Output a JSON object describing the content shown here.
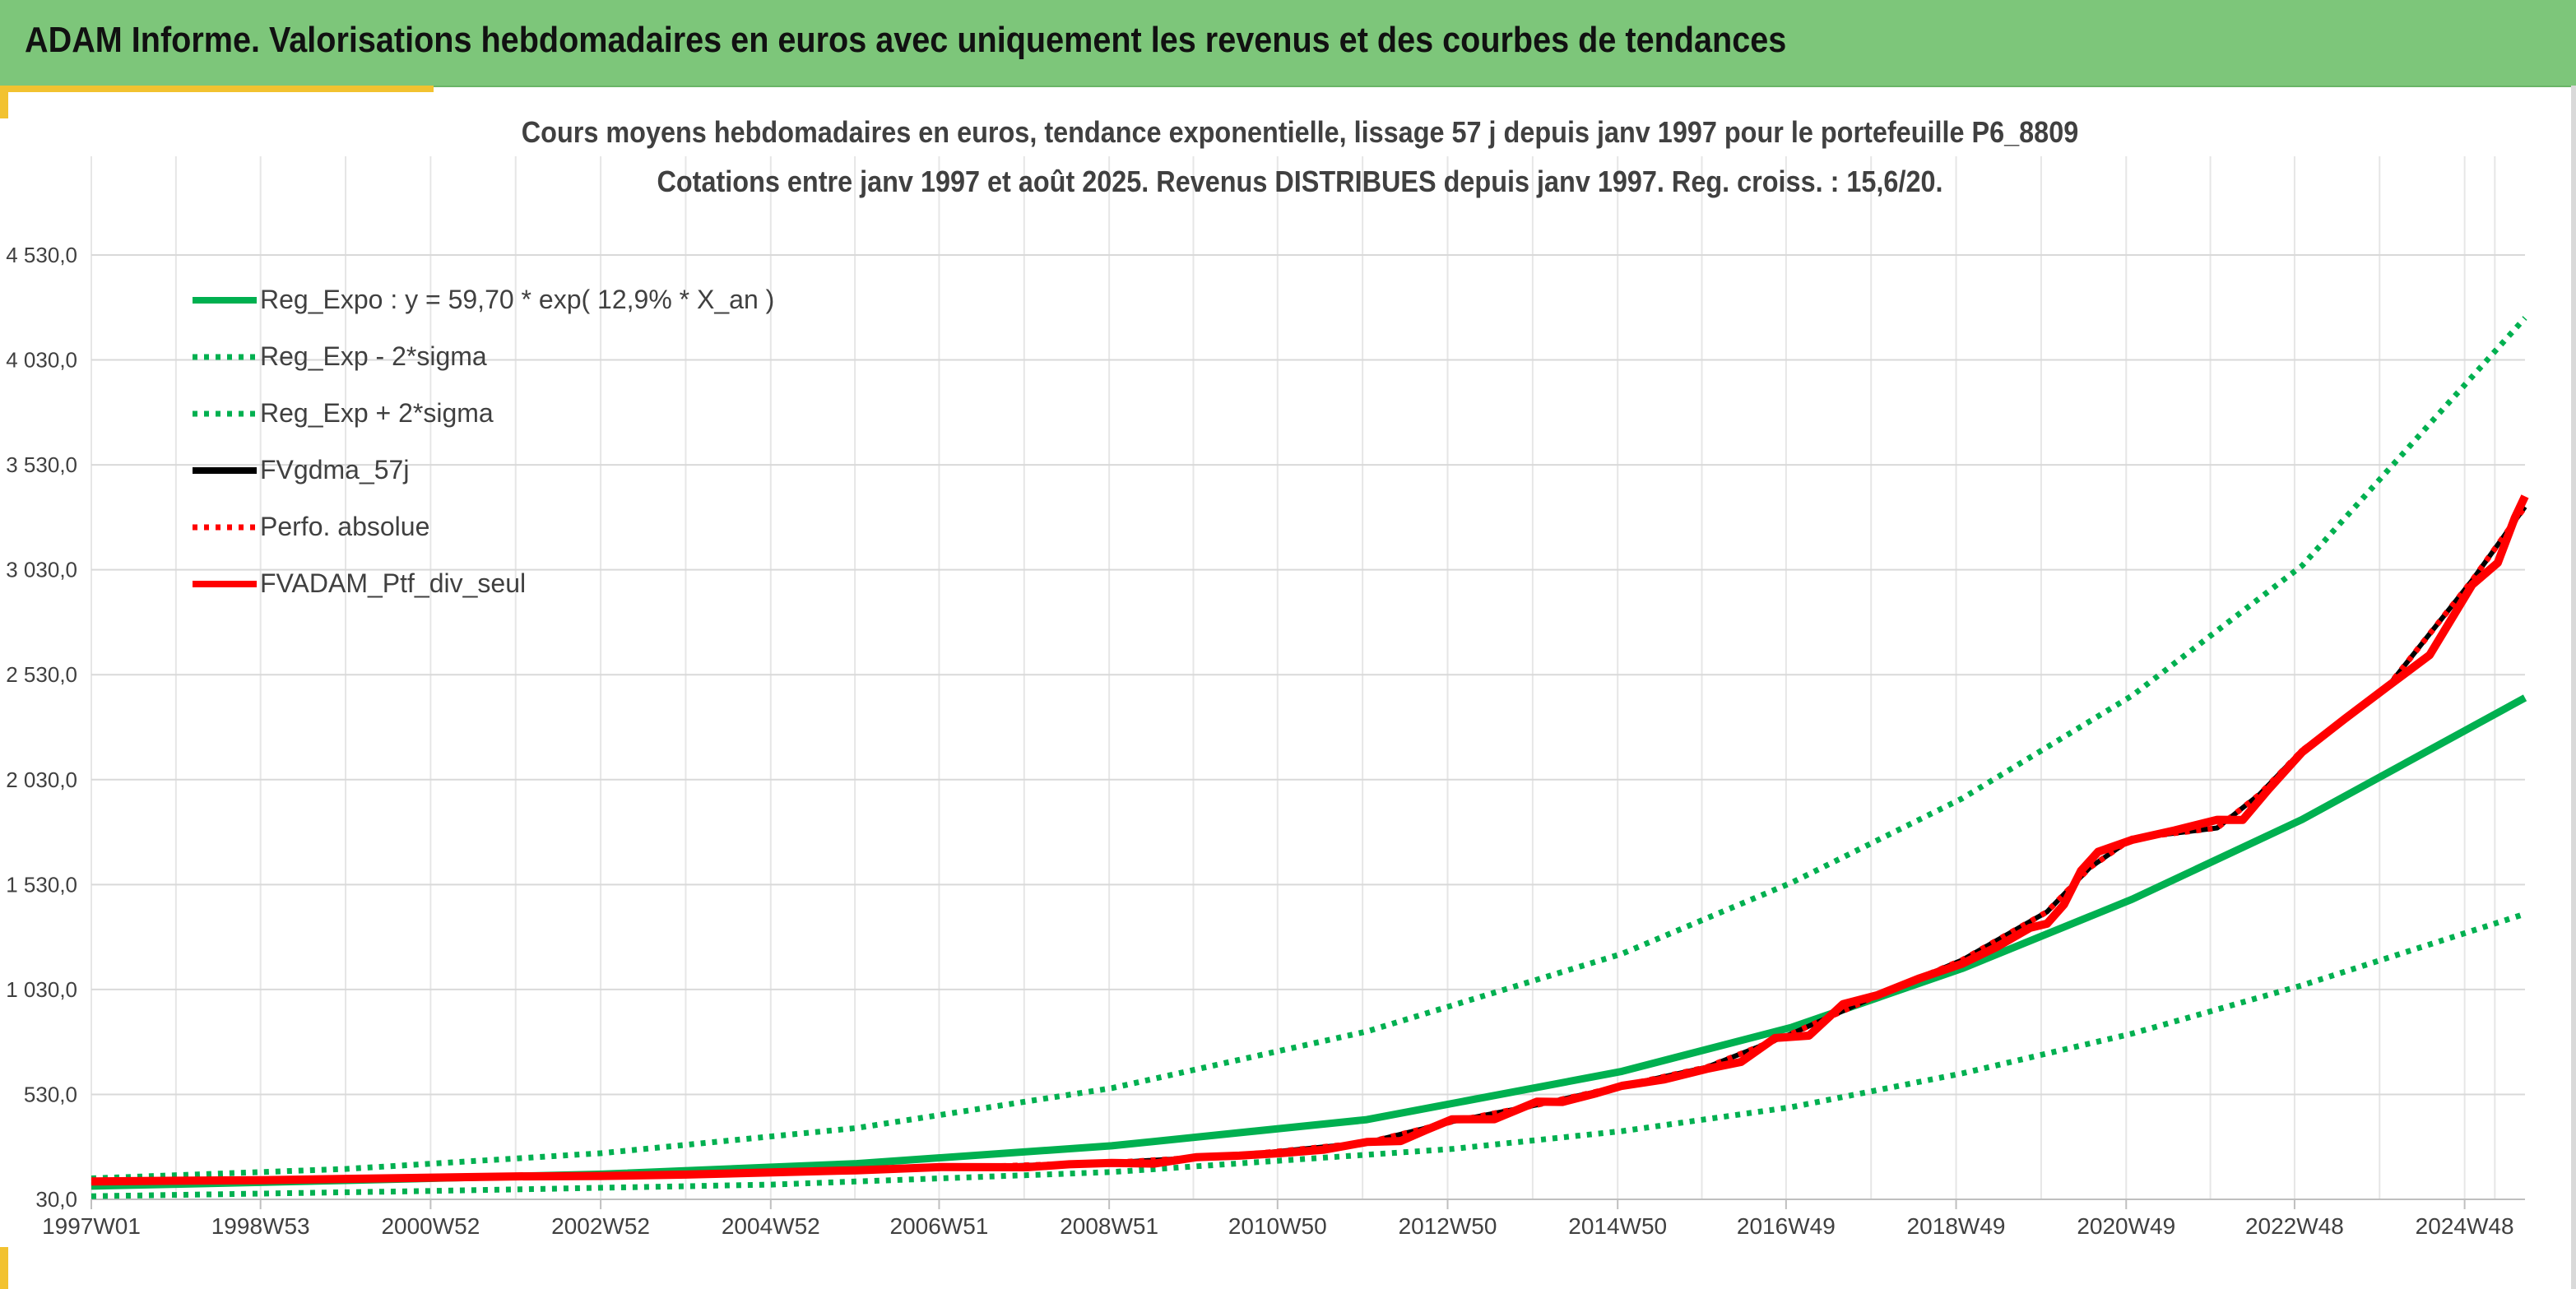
{
  "banner": {
    "title": "ADAM Informe. Valorisations hebdomadaires en euros avec uniquement les revenus et des courbes de tendances"
  },
  "colors": {
    "banner_bg": "#7dc67a",
    "accent": "#f2c230",
    "green": "#00b050",
    "red": "#ff0000",
    "black": "#000000"
  },
  "chart_data": {
    "type": "line",
    "title": "Cours moyens hebdomadaires en euros, tendance exponentielle, lissage 57 j depuis janv 1997 pour le portefeuille P6_8809",
    "subtitle": "Cotations entre janv 1997 et août 2025. Revenus DISTRIBUES depuis janv 1997. Reg. croiss. : 15,6/20.",
    "xlabel": "",
    "ylabel": "",
    "x_range": [
      1997.0,
      2025.62
    ],
    "ylim": [
      30,
      4530
    ],
    "y_ticks": [
      30,
      530,
      1030,
      1530,
      2030,
      2530,
      3030,
      3530,
      4030,
      4530
    ],
    "y_tick_labels": [
      "30,0",
      "530,0",
      "1 030,0",
      "1 530,0",
      "2 030,0",
      "2 530,0",
      "3 030,0",
      "3 530,0",
      "4 030,0",
      "4 530,0"
    ],
    "x_ticks": [
      {
        "label": "1997W01",
        "x": 1997.0
      },
      {
        "label": "1998W53",
        "x": 1998.99
      },
      {
        "label": "2000W52",
        "x": 2000.99
      },
      {
        "label": "2002W52",
        "x": 2002.99
      },
      {
        "label": "2004W52",
        "x": 2004.99
      },
      {
        "label": "2006W51",
        "x": 2006.97
      },
      {
        "label": "2008W51",
        "x": 2008.97
      },
      {
        "label": "2010W50",
        "x": 2010.95
      },
      {
        "label": "2012W50",
        "x": 2012.95
      },
      {
        "label": "2014W50",
        "x": 2014.95
      },
      {
        "label": "2016W49",
        "x": 2016.93
      },
      {
        "label": "2018W49",
        "x": 2018.93
      },
      {
        "label": "2020W49",
        "x": 2020.93
      },
      {
        "label": "2022W48",
        "x": 2022.91
      },
      {
        "label": "2024W48",
        "x": 2024.91
      }
    ],
    "grid": true,
    "legend_position": "top-left",
    "series": [
      {
        "name": "Reg_Expo : y = 59,70 * exp( 12,9% *  X_an )",
        "color": "#00b050",
        "style": "solid",
        "x": [
          1997.0,
          2000.0,
          2003.0,
          2006.0,
          2009.0,
          2012.0,
          2015.0,
          2017.0,
          2019.0,
          2021.0,
          2023.0,
          2025.62
        ],
        "y": [
          93,
          120,
          150,
          200,
          285,
          410,
          640,
          850,
          1130,
          1460,
          1840,
          2420
        ]
      },
      {
        "name": "Reg_Exp - 2*sigma",
        "color": "#00b050",
        "style": "dotted",
        "x": [
          1997.0,
          2001.0,
          2005.0,
          2009.0,
          2013.0,
          2015.0,
          2017.0,
          2019.0,
          2021.0,
          2023.0,
          2025.62
        ],
        "y": [
          45,
          70,
          100,
          160,
          270,
          355,
          470,
          630,
          820,
          1050,
          1390
        ]
      },
      {
        "name": "Reg_Exp + 2*sigma",
        "color": "#00b050",
        "style": "dotted",
        "x": [
          1997.0,
          2000.0,
          2003.0,
          2006.0,
          2009.0,
          2012.0,
          2015.0,
          2017.0,
          2019.0,
          2021.0,
          2023.0,
          2025.62
        ],
        "y": [
          130,
          175,
          250,
          370,
          560,
          830,
          1200,
          1540,
          1940,
          2430,
          3050,
          4230
        ]
      },
      {
        "name": "FVgdma_57j",
        "color": "#000000",
        "style": "solid",
        "x": [
          1997.0,
          1999.0,
          2001.0,
          2003.0,
          2005.0,
          2007.0,
          2009.0,
          2010.5,
          2012.0,
          2013.0,
          2014.0,
          2015.0,
          2016.0,
          2017.0,
          2018.0,
          2019.0,
          2020.0,
          2020.5,
          2021.0,
          2022.0,
          2022.5,
          2023.0,
          2024.0,
          2025.0,
          2025.62
        ],
        "y": [
          115,
          120,
          130,
          140,
          160,
          180,
          205,
          240,
          300,
          400,
          480,
          570,
          660,
          820,
          1000,
          1170,
          1400,
          1610,
          1750,
          1800,
          1960,
          2170,
          2470,
          2980,
          3330
        ]
      },
      {
        "name": "Perfo. absolue",
        "color": "#ff0000",
        "style": "dotted",
        "x": [
          1997.0,
          1999.0,
          2001.0,
          2003.0,
          2005.0,
          2007.0,
          2009.0,
          2010.5,
          2012.0,
          2013.0,
          2014.0,
          2015.0,
          2016.0,
          2017.0,
          2018.0,
          2019.0,
          2020.0,
          2020.5,
          2021.0,
          2022.0,
          2022.5,
          2023.0,
          2024.0,
          2025.0,
          2025.62
        ],
        "y": [
          115,
          120,
          130,
          140,
          160,
          180,
          205,
          240,
          300,
          400,
          480,
          570,
          660,
          820,
          1000,
          1170,
          1400,
          1610,
          1750,
          1800,
          1960,
          2170,
          2470,
          2980,
          3330
        ]
      },
      {
        "name": "FVADAM_Ptf_div_seul",
        "color": "#ff0000",
        "style": "solid",
        "x": [
          1997.0,
          1998.0,
          1999.0,
          2000.0,
          2001.0,
          2002.0,
          2003.0,
          2004.0,
          2005.0,
          2006.0,
          2007.0,
          2008.0,
          2008.5,
          2009.0,
          2009.5,
          2010.0,
          2010.5,
          2011.0,
          2011.5,
          2012.0,
          2012.4,
          2012.7,
          2013.0,
          2013.5,
          2014.0,
          2014.3,
          2014.7,
          2015.0,
          2015.5,
          2016.0,
          2016.4,
          2016.8,
          2017.2,
          2017.6,
          2018.0,
          2018.5,
          2019.0,
          2019.4,
          2019.8,
          2020.0,
          2020.2,
          2020.4,
          2020.6,
          2021.0,
          2021.5,
          2022.0,
          2022.3,
          2022.6,
          2023.0,
          2023.5,
          2024.0,
          2024.5,
          2025.0,
          2025.3,
          2025.5,
          2025.62
        ],
        "y": [
          115,
          118,
          122,
          126,
          135,
          138,
          142,
          148,
          158,
          170,
          182,
          185,
          195,
          205,
          200,
          230,
          240,
          248,
          270,
          300,
          310,
          360,
          410,
          415,
          490,
          500,
          530,
          575,
          600,
          650,
          690,
          790,
          820,
          950,
          1010,
          1080,
          1150,
          1240,
          1310,
          1360,
          1420,
          1610,
          1680,
          1740,
          1800,
          1820,
          1860,
          1960,
          2180,
          2310,
          2470,
          2640,
          2930,
          3100,
          3240,
          3380
        ]
      }
    ]
  }
}
